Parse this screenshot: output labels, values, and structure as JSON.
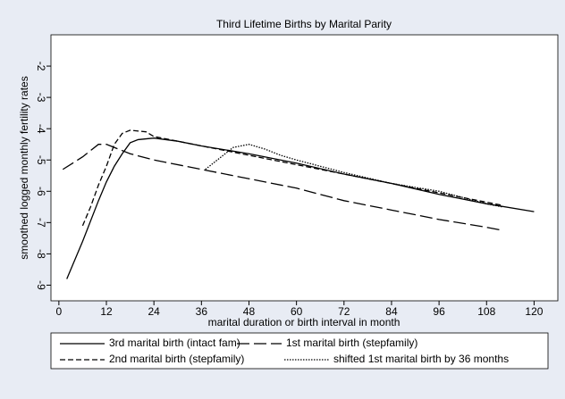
{
  "chart_data": {
    "type": "line",
    "title": "Third Lifetime Births by Marital Parity",
    "x_label": "marital duration or birth interval in month",
    "y_label": "smoothed logged monthly fertility rates",
    "xlim": [
      -2,
      126
    ],
    "ylim": [
      -9.5,
      -1
    ],
    "xticks": [
      0,
      12,
      24,
      36,
      48,
      60,
      72,
      84,
      96,
      108,
      120
    ],
    "yticks": [
      -2,
      -3,
      -4,
      -5,
      -6,
      -7,
      -8,
      -9
    ],
    "series": [
      {
        "name": "3rd marital birth (intact fam)",
        "color": "#000000",
        "dash": "solid",
        "x": [
          2,
          6,
          10,
          12,
          14,
          16,
          18,
          20,
          24,
          30,
          36,
          48,
          60,
          72,
          84,
          96,
          108,
          120
        ],
        "values": [
          -8.8,
          -7.6,
          -6.3,
          -5.7,
          -5.2,
          -4.8,
          -4.45,
          -4.35,
          -4.3,
          -4.4,
          -4.55,
          -4.8,
          -5.1,
          -5.45,
          -5.75,
          -6.1,
          -6.4,
          -6.65
        ]
      },
      {
        "name": "1st marital birth (stepfamily)",
        "color": "#000000",
        "dash": "long",
        "x": [
          1,
          6,
          10,
          12,
          18,
          24,
          36,
          48,
          60,
          72,
          84,
          96,
          108,
          112
        ],
        "values": [
          -5.3,
          -4.9,
          -4.5,
          -4.5,
          -4.8,
          -5.0,
          -5.3,
          -5.6,
          -5.9,
          -6.3,
          -6.6,
          -6.9,
          -7.15,
          -7.25
        ]
      },
      {
        "name": "2nd marital birth (stepfamily)",
        "color": "#000000",
        "dash": "short",
        "x": [
          6,
          8,
          10,
          12,
          14,
          16,
          18,
          22,
          24,
          36,
          48,
          60,
          72,
          84,
          96,
          108,
          112
        ],
        "values": [
          -7.1,
          -6.5,
          -5.8,
          -5.2,
          -4.5,
          -4.15,
          -4.05,
          -4.1,
          -4.25,
          -4.55,
          -4.85,
          -5.15,
          -5.45,
          -5.75,
          -6.05,
          -6.35,
          -6.45
        ]
      },
      {
        "name": "shifted 1st marital birth by 36 months",
        "color": "#000000",
        "dash": "dotted",
        "x": [
          37,
          40,
          44,
          48,
          52,
          56,
          60,
          72,
          84,
          96,
          108,
          112
        ],
        "values": [
          -5.3,
          -5.0,
          -4.6,
          -4.5,
          -4.65,
          -4.85,
          -5.0,
          -5.4,
          -5.75,
          -6.0,
          -6.4,
          -6.5
        ]
      }
    ]
  }
}
